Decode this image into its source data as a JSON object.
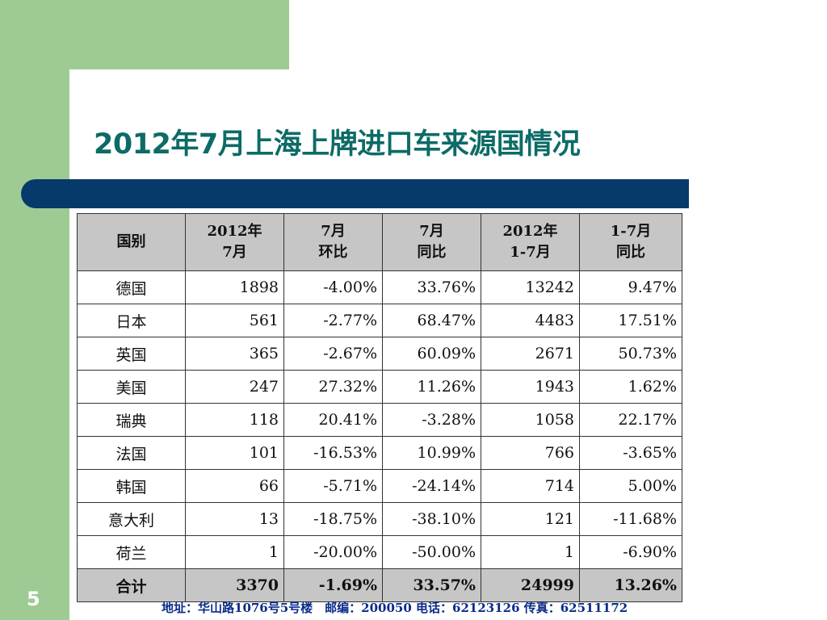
{
  "slide": {
    "title": "2012年7月上海上牌进口车来源国情况",
    "page_number": "5",
    "footer": "地址：华山路1076号5号楼　邮编：200050  电话：62123126  传真：62511172"
  },
  "table": {
    "headers": [
      [
        "国别"
      ],
      [
        "2012年",
        "7月"
      ],
      [
        "7月",
        "环比"
      ],
      [
        "7月",
        "同比"
      ],
      [
        "2012年",
        "1-7月"
      ],
      [
        "1-7月",
        "同比"
      ]
    ],
    "rows": [
      [
        "德国",
        "1898",
        "-4.00%",
        "33.76%",
        "13242",
        "9.47%"
      ],
      [
        "日本",
        "561",
        "-2.77%",
        "68.47%",
        "4483",
        "17.51%"
      ],
      [
        "英国",
        "365",
        "-2.67%",
        "60.09%",
        "2671",
        "50.73%"
      ],
      [
        "美国",
        "247",
        "27.32%",
        "11.26%",
        "1943",
        "1.62%"
      ],
      [
        "瑞典",
        "118",
        "20.41%",
        "-3.28%",
        "1058",
        "22.17%"
      ],
      [
        "法国",
        "101",
        "-16.53%",
        "10.99%",
        "766",
        "-3.65%"
      ],
      [
        "韩国",
        "66",
        "-5.71%",
        "-24.14%",
        "714",
        "5.00%"
      ],
      [
        "意大利",
        "13",
        "-18.75%",
        "-38.10%",
        "121",
        "-11.68%"
      ],
      [
        "荷兰",
        "1",
        "-20.00%",
        "-50.00%",
        "1",
        "-6.90%"
      ]
    ],
    "total": [
      "合计",
      "3370",
      "-1.69%",
      "33.57%",
      "24999",
      "13.26%"
    ]
  },
  "colors": {
    "green_background": "#9dcb93",
    "title_teal": "#0d6b66",
    "navy_bar": "#063a6b",
    "header_gray": "#c6c6c6",
    "footer_blue": "#0a2b8a"
  }
}
